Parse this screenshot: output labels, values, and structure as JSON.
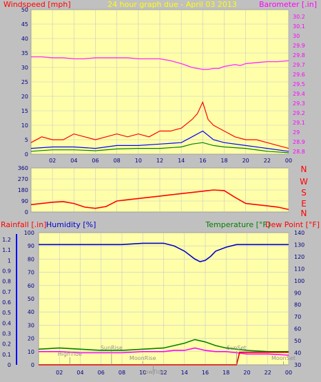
{
  "header": {
    "left_label": "Windspeed [mph]",
    "title": "24 hour graph due - April 03 2013",
    "right_label": "Barometer [.in]"
  },
  "wind_dir_labels": [
    "N",
    "W",
    "S",
    "E",
    "N"
  ],
  "lower_header": {
    "rainfall_label": "Rainfall [.in]",
    "humidity_label": "Humidity [%]",
    "temperature_label": "Temperature [°F]",
    "dewpoint_label": "Dew Point [°F]"
  },
  "colors": {
    "frame": "#c0c0c0",
    "plot_bg": "#ffffaa",
    "grid": "#c8c8c8",
    "wind": "#ff0000",
    "gust_avg": "#0000ff",
    "wind_avg": "#008000",
    "barometer": "#ff33ff",
    "humidity": "#0000cc",
    "temperature": "#008000",
    "dewpoint": "#ff00ff",
    "rain": "#dd0000",
    "astro": "#909090"
  },
  "chart_data": [
    {
      "type": "line",
      "title": "24 hour graph due - April 03 2013",
      "ylabel": "Windspeed [mph]",
      "y2label": "Barometer [.in]",
      "x_ticks": [
        "02",
        "04",
        "06",
        "08",
        "10",
        "12",
        "14",
        "16",
        "18",
        "20",
        "22",
        "00"
      ],
      "y_ticks": [
        "0",
        "5",
        "10",
        "15",
        "20",
        "25",
        "30",
        "35",
        "40",
        "45",
        "50"
      ],
      "y2_ticks": [
        "28.8",
        "28.9",
        "29",
        "29.1",
        "29.2",
        "29.3",
        "29.4",
        "29.5",
        "29.6",
        "29.7",
        "29.8",
        "29.9",
        "30",
        "30.1",
        "30.2"
      ],
      "ylim": [
        0,
        50
      ],
      "y2lim": [
        28.77,
        30.27
      ],
      "series": [
        {
          "name": "Barometer [.in]",
          "x": [
            0,
            1,
            2,
            3,
            4,
            5,
            6,
            7,
            8,
            9,
            10,
            11,
            12,
            13,
            14,
            14.5,
            15,
            15.5,
            16,
            16.5,
            17,
            17.5,
            18,
            18.5,
            19,
            19.5,
            20,
            21,
            22,
            23,
            24
          ],
          "values": [
            29.78,
            29.78,
            29.77,
            29.77,
            29.76,
            29.76,
            29.77,
            29.77,
            29.77,
            29.77,
            29.76,
            29.76,
            29.76,
            29.74,
            29.71,
            29.69,
            29.67,
            29.66,
            29.65,
            29.65,
            29.66,
            29.66,
            29.68,
            29.69,
            29.7,
            29.69,
            29.71,
            29.72,
            29.73,
            29.73,
            29.74
          ]
        },
        {
          "name": "Wind speed",
          "x": [
            0,
            1,
            2,
            3,
            4,
            5,
            6,
            7,
            8,
            9,
            10,
            11,
            12,
            13,
            14,
            15,
            15.5,
            16,
            16.5,
            17,
            18,
            19,
            20,
            21,
            22,
            23,
            24
          ],
          "values": [
            4,
            6,
            5,
            5,
            7,
            6,
            5,
            6,
            7,
            6,
            7,
            6,
            8,
            8,
            9,
            12,
            14,
            18,
            12,
            10,
            8,
            6,
            5,
            5,
            4,
            3,
            2
          ]
        },
        {
          "name": "Average speed",
          "x": [
            0,
            2,
            4,
            6,
            8,
            10,
            12,
            14,
            15,
            16,
            17,
            18,
            20,
            22,
            24
          ],
          "values": [
            2,
            2.5,
            2.5,
            2,
            3,
            3,
            3.5,
            4,
            6,
            8,
            5,
            4,
            3,
            2,
            1
          ]
        },
        {
          "name": "Lull",
          "x": [
            0,
            2,
            4,
            6,
            8,
            10,
            12,
            14,
            15,
            16,
            17,
            18,
            20,
            22,
            24
          ],
          "values": [
            1,
            1.5,
            1.5,
            1.2,
            1.8,
            2,
            2,
            2.5,
            3.5,
            4,
            3,
            2.5,
            2,
            1,
            0.5
          ]
        }
      ]
    },
    {
      "type": "line",
      "ylabel": "Wind direction",
      "x_ticks": [
        "02",
        "04",
        "06",
        "08",
        "10",
        "12",
        "14",
        "16",
        "18",
        "20",
        "22",
        "00"
      ],
      "y_ticks": [
        "0",
        "90",
        "180",
        "270",
        "360"
      ],
      "ylim": [
        0,
        360
      ],
      "series": [
        {
          "name": "Wind direction",
          "x": [
            0,
            1,
            2,
            3,
            4,
            5,
            6,
            7,
            8,
            9,
            10,
            11,
            12,
            13,
            14,
            15,
            16,
            17,
            18,
            19,
            20,
            21,
            22,
            23,
            24
          ],
          "values": [
            60,
            70,
            80,
            85,
            70,
            40,
            30,
            45,
            90,
            100,
            110,
            120,
            130,
            140,
            150,
            160,
            170,
            180,
            175,
            120,
            70,
            60,
            50,
            40,
            20
          ]
        }
      ]
    },
    {
      "type": "line",
      "ylabel": "Humidity [%]",
      "y2label": "Temperature [°F]",
      "x_ticks": [
        "02",
        "04",
        "06",
        "08",
        "10",
        "12",
        "14",
        "16",
        "18",
        "20",
        "22",
        "00"
      ],
      "y_ticks": [
        "0",
        "10",
        "20",
        "30",
        "40",
        "50",
        "60",
        "70",
        "80",
        "90",
        "100"
      ],
      "rain_ticks": [
        "0",
        "0.1",
        "0.2",
        "0.3",
        "0.4",
        "0.5",
        "0.6",
        "0.7",
        "0.8",
        "0.9",
        "1",
        "1.1",
        "1.2"
      ],
      "y2_ticks": [
        "30",
        "40",
        "50",
        "60",
        "70",
        "80",
        "90",
        "100",
        "110",
        "120",
        "130",
        "140"
      ],
      "ylim": [
        0,
        100
      ],
      "y2lim": [
        30,
        140
      ],
      "series": [
        {
          "name": "Humidity [%]",
          "x": [
            0,
            2,
            4,
            6,
            8,
            10,
            12,
            13,
            14,
            14.5,
            15,
            15.5,
            16,
            16.5,
            17,
            18,
            19,
            20,
            22,
            24
          ],
          "values": [
            91,
            91,
            91,
            91,
            91,
            92,
            92,
            90,
            86,
            83,
            80,
            78,
            79,
            82,
            86,
            89,
            91,
            91,
            91,
            91
          ]
        },
        {
          "name": "Temperature [°F]",
          "x": [
            0,
            2,
            4,
            6,
            8,
            10,
            12,
            13,
            14,
            15,
            16,
            17,
            18,
            19,
            20,
            22,
            24
          ],
          "values": [
            43,
            44,
            43,
            42,
            42,
            43,
            44,
            46,
            48,
            51,
            49,
            46,
            44,
            43,
            42,
            41,
            41
          ]
        },
        {
          "name": "Dew Point [°F]",
          "x": [
            0,
            2,
            4,
            6,
            8,
            10,
            12,
            13,
            14,
            15,
            16,
            17,
            18,
            19,
            20,
            22,
            24
          ],
          "values": [
            41,
            41,
            40,
            40,
            40,
            41,
            41,
            42,
            42,
            44,
            42,
            41,
            41,
            40,
            39,
            39,
            38
          ]
        },
        {
          "name": "Rainfall [.in]",
          "x": [
            0,
            19,
            19.3,
            24
          ],
          "values": [
            0,
            0,
            0.12,
            0.12
          ]
        }
      ],
      "annotations": [
        "HighTide",
        "SunRise",
        "MoonRise",
        "LowTide",
        "SunSet",
        "MoonSet"
      ]
    }
  ]
}
